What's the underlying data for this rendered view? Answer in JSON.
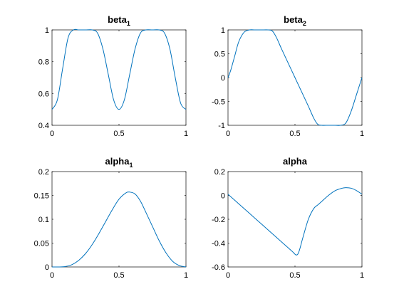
{
  "chart_data": [
    {
      "type": "line",
      "title": "beta",
      "title_subscript": "1",
      "xlim": [
        0,
        1
      ],
      "ylim": [
        0.4,
        1
      ],
      "xticks": [
        0,
        0.5,
        1
      ],
      "xticklabels": [
        "0",
        "0.5",
        "1"
      ],
      "yticks": [
        0.4,
        0.6,
        0.8,
        1
      ],
      "yticklabels": [
        "0.4",
        "0.6",
        "0.8",
        "1"
      ],
      "grid": false,
      "line_color": "#0072BD",
      "x": [
        0,
        0.04,
        0.08,
        0.12,
        0.16,
        0.2,
        0.25,
        0.3,
        0.34,
        0.38,
        0.42,
        0.46,
        0.5,
        0.54,
        0.58,
        0.62,
        0.66,
        0.7,
        0.75,
        0.8,
        0.84,
        0.88,
        0.92,
        0.96,
        1
      ],
      "y": [
        0.5,
        0.56,
        0.76,
        0.95,
        1,
        1,
        1,
        1,
        0.98,
        0.88,
        0.72,
        0.56,
        0.5,
        0.56,
        0.72,
        0.88,
        0.98,
        1,
        1,
        1,
        0.98,
        0.88,
        0.7,
        0.54,
        0.5
      ]
    },
    {
      "type": "line",
      "title": "beta",
      "title_subscript": "2",
      "xlim": [
        0,
        1
      ],
      "ylim": [
        -1,
        1
      ],
      "xticks": [
        0,
        0.5,
        1
      ],
      "xticklabels": [
        "0",
        "0.5",
        "1"
      ],
      "yticks": [
        -1,
        -0.5,
        0,
        0.5,
        1
      ],
      "yticklabels": [
        "-1",
        "-0.5",
        "0",
        "0.5",
        "1"
      ],
      "grid": false,
      "line_color": "#0072BD",
      "x": [
        0,
        0.02,
        0.05,
        0.08,
        0.12,
        0.16,
        0.2,
        0.25,
        0.3,
        0.33,
        0.36,
        0.4,
        0.45,
        0.5,
        0.55,
        0.6,
        0.64,
        0.67,
        0.7,
        0.75,
        0.8,
        0.84,
        0.88,
        0.92,
        0.96,
        1
      ],
      "y": [
        0,
        0.15,
        0.45,
        0.75,
        0.95,
        1,
        1,
        1,
        1,
        0.98,
        0.85,
        0.6,
        0.3,
        0,
        -0.3,
        -0.6,
        -0.85,
        -0.98,
        -1,
        -1,
        -1,
        -1,
        -0.95,
        -0.7,
        -0.35,
        0
      ]
    },
    {
      "type": "line",
      "title": "alpha",
      "title_subscript": "1",
      "xlim": [
        0,
        1
      ],
      "ylim": [
        0,
        0.2
      ],
      "xticks": [
        0,
        0.5,
        1
      ],
      "xticklabels": [
        "0",
        "0.5",
        "1"
      ],
      "yticks": [
        0,
        0.05,
        0.1,
        0.15,
        0.2
      ],
      "yticklabels": [
        "0",
        "0.05",
        "0.1",
        "0.15",
        "0.2"
      ],
      "grid": false,
      "line_color": "#0072BD",
      "x": [
        0,
        0.05,
        0.1,
        0.15,
        0.2,
        0.25,
        0.3,
        0.35,
        0.4,
        0.45,
        0.5,
        0.55,
        0.58,
        0.62,
        0.66,
        0.7,
        0.75,
        0.8,
        0.85,
        0.9,
        0.95,
        1
      ],
      "y": [
        0,
        0,
        0.001,
        0.005,
        0.014,
        0.028,
        0.047,
        0.07,
        0.095,
        0.12,
        0.142,
        0.155,
        0.157,
        0.153,
        0.138,
        0.115,
        0.085,
        0.055,
        0.03,
        0.012,
        0.003,
        0
      ]
    },
    {
      "type": "line",
      "title": "alpha",
      "title_subscript": "",
      "xlim": [
        0,
        1
      ],
      "ylim": [
        -0.6,
        0.2
      ],
      "xticks": [
        0,
        0.5,
        1
      ],
      "xticklabels": [
        "0",
        "0.5",
        "1"
      ],
      "yticks": [
        -0.6,
        -0.4,
        -0.2,
        0,
        0.2
      ],
      "yticklabels": [
        "-0.6",
        "-0.4",
        "-0.2",
        "0",
        "0.2"
      ],
      "grid": false,
      "line_color": "#0072BD",
      "x": [
        0,
        0.1,
        0.2,
        0.3,
        0.4,
        0.48,
        0.51,
        0.53,
        0.56,
        0.6,
        0.64,
        0.67,
        0.7,
        0.75,
        0.8,
        0.85,
        0.88,
        0.92,
        0.96,
        1
      ],
      "y": [
        0.01,
        -0.09,
        -0.19,
        -0.29,
        -0.39,
        -0.47,
        -0.5,
        -0.47,
        -0.35,
        -0.2,
        -0.11,
        -0.08,
        -0.05,
        0,
        0.04,
        0.06,
        0.065,
        0.06,
        0.04,
        0.01
      ]
    }
  ]
}
